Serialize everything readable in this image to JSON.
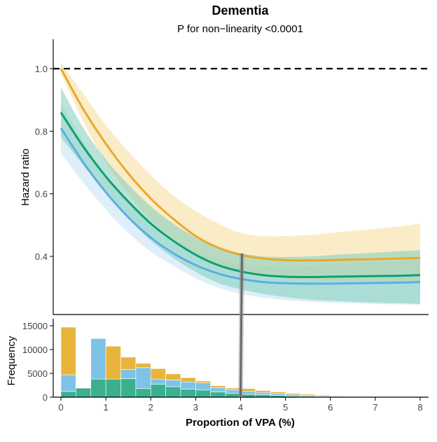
{
  "chart_data": {
    "type": "line",
    "title": "Dementia",
    "subtitle": "P for non−linearity <0.0001",
    "ylabel": "Hazard ratio",
    "xlabel": "Proportion of VPA (%)",
    "xlim": [
      -0.1,
      8.1
    ],
    "ylim": [
      0.2,
      1.09
    ],
    "yticks": [
      0.4,
      0.6,
      0.8,
      1.0
    ],
    "ytick_labels": [
      "0.4",
      "0.6",
      "0.8",
      "1.0"
    ],
    "reference_line": 1.0,
    "vertical_marker": 4,
    "colors": {
      "orange": "#E7A92A",
      "green": "#119F6E",
      "blue": "#5DAEE2",
      "orange_band": "#F8DC9A",
      "green_band": "#7FCDB9",
      "blue_band": "#BFE0F5"
    },
    "series": [
      {
        "name": "orange",
        "color": "#E7A92A",
        "x": [
          0,
          0.5,
          1,
          1.5,
          2,
          2.5,
          3,
          3.5,
          4,
          4.5,
          5,
          5.5,
          6,
          6.5,
          7,
          7.5,
          8
        ],
        "y": [
          1.0,
          0.87,
          0.76,
          0.665,
          0.585,
          0.52,
          0.465,
          0.428,
          0.405,
          0.393,
          0.388,
          0.387,
          0.388,
          0.39,
          0.391,
          0.393,
          0.395
        ],
        "lower": [
          0.985,
          0.83,
          0.7,
          0.6,
          0.515,
          0.455,
          0.41,
          0.375,
          0.355,
          0.34,
          0.33,
          0.325,
          0.32,
          0.318,
          0.316,
          0.314,
          0.312
        ],
        "upper": [
          1.02,
          0.92,
          0.82,
          0.735,
          0.66,
          0.595,
          0.545,
          0.505,
          0.475,
          0.465,
          0.465,
          0.468,
          0.475,
          0.482,
          0.488,
          0.495,
          0.505
        ]
      },
      {
        "name": "green",
        "color": "#119F6E",
        "x": [
          0,
          0.5,
          1,
          1.5,
          2,
          2.5,
          3,
          3.5,
          4,
          4.5,
          5,
          5.5,
          6,
          6.5,
          7,
          7.5,
          8
        ],
        "y": [
          0.86,
          0.75,
          0.655,
          0.575,
          0.505,
          0.45,
          0.405,
          0.372,
          0.352,
          0.34,
          0.335,
          0.334,
          0.335,
          0.336,
          0.337,
          0.338,
          0.34
        ],
        "lower": [
          0.78,
          0.69,
          0.6,
          0.52,
          0.45,
          0.395,
          0.35,
          0.315,
          0.295,
          0.28,
          0.27,
          0.262,
          0.258,
          0.255,
          0.252,
          0.25,
          0.248
        ],
        "upper": [
          0.94,
          0.81,
          0.71,
          0.63,
          0.56,
          0.505,
          0.46,
          0.428,
          0.41,
          0.4,
          0.398,
          0.4,
          0.404,
          0.408,
          0.412,
          0.416,
          0.42
        ]
      },
      {
        "name": "blue",
        "color": "#5DAEE2",
        "x": [
          0,
          0.5,
          1,
          1.5,
          2,
          2.5,
          3,
          3.5,
          4,
          4.5,
          5,
          5.5,
          6,
          6.5,
          7,
          7.5,
          8
        ],
        "y": [
          0.81,
          0.7,
          0.605,
          0.525,
          0.46,
          0.41,
          0.372,
          0.345,
          0.328,
          0.318,
          0.314,
          0.313,
          0.313,
          0.314,
          0.315,
          0.316,
          0.318
        ],
        "lower": [
          0.73,
          0.635,
          0.55,
          0.475,
          0.415,
          0.37,
          0.33,
          0.3,
          0.28,
          0.268,
          0.26,
          0.255,
          0.252,
          0.25,
          0.248,
          0.246,
          0.245
        ],
        "upper": [
          0.89,
          0.765,
          0.66,
          0.575,
          0.505,
          0.45,
          0.415,
          0.39,
          0.375,
          0.37,
          0.368,
          0.37,
          0.374,
          0.378,
          0.382,
          0.386,
          0.39
        ]
      }
    ],
    "histogram": {
      "ylabel": "Frequency",
      "ylim": [
        0,
        16500
      ],
      "yticks": [
        0,
        5000,
        10000,
        15000
      ],
      "ytick_labels": [
        "0",
        "5000",
        "10000",
        "15000"
      ],
      "xticks": [
        0,
        1,
        2,
        3,
        4,
        5,
        6,
        7,
        8
      ],
      "xtick_labels": [
        "0",
        "1",
        "2",
        "3",
        "4",
        "5",
        "6",
        "7",
        "8"
      ],
      "bin_width": 0.333,
      "bin_starts": [
        0,
        0.333,
        0.667,
        1.0,
        1.333,
        1.667,
        2.0,
        2.333,
        2.667,
        3.0,
        3.333,
        3.667,
        4.0,
        4.333,
        4.667,
        5.0,
        5.333,
        5.667,
        6.0,
        6.333,
        6.667,
        7.0,
        7.333,
        7.667
      ],
      "stack": [
        {
          "name": "green",
          "color": "#3BB08F",
          "values": [
            1200,
            1900,
            3800,
            3800,
            3900,
            1800,
            2700,
            2200,
            1700,
            1500,
            1100,
            800,
            600,
            500,
            350,
            250,
            180,
            130,
            100,
            80,
            60,
            40,
            30,
            20
          ]
        },
        {
          "name": "blue",
          "color": "#7EC3E6",
          "values": [
            3500,
            0,
            8500,
            0,
            1900,
            4400,
            1100,
            1400,
            1500,
            1500,
            900,
            700,
            600,
            500,
            400,
            300,
            250,
            180,
            130,
            100,
            80,
            60,
            40,
            30
          ]
        },
        {
          "name": "orange",
          "color": "#E8B43C",
          "values": [
            10000,
            0,
            0,
            6900,
            2600,
            900,
            2200,
            1300,
            900,
            400,
            400,
            400,
            600,
            400,
            350,
            250,
            220,
            160,
            120,
            90,
            60,
            50,
            30,
            20
          ]
        }
      ]
    }
  }
}
